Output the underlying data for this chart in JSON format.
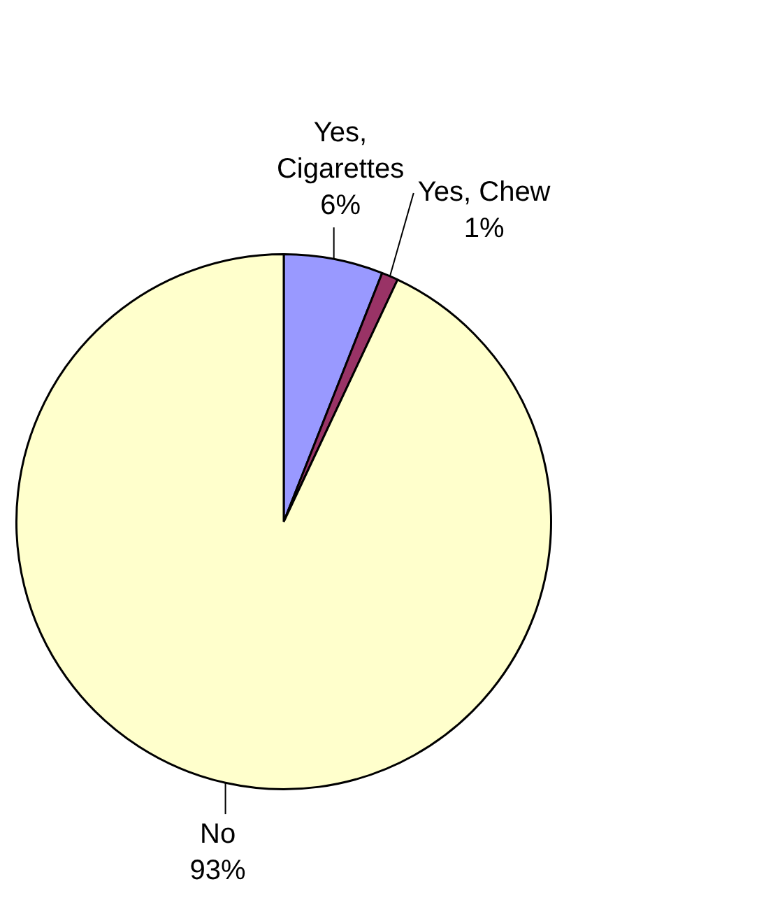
{
  "chart_data": {
    "type": "pie",
    "categories": [
      "Yes, Cigarettes",
      "Yes, Chew",
      "No"
    ],
    "values": [
      6,
      1,
      93
    ],
    "value_labels": [
      "6%",
      "1%",
      "93%"
    ],
    "colors": [
      "#9999ff",
      "#993366",
      "#ffffcc"
    ],
    "legend": false
  }
}
